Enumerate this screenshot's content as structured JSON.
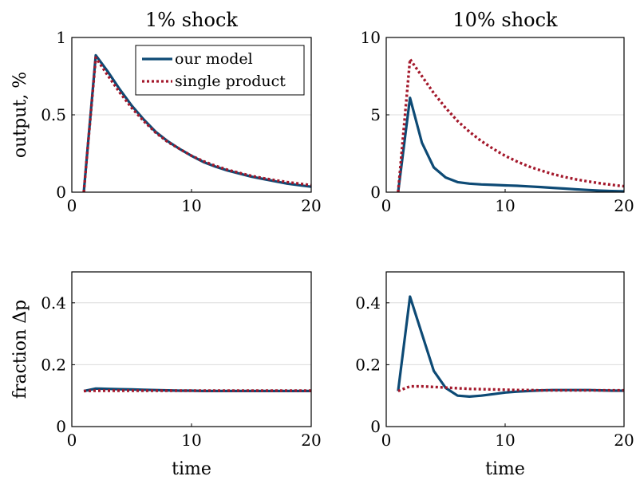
{
  "chart_data": [
    {
      "type": "line",
      "title": "1% shock",
      "xlabel": "",
      "ylabel": "output, %",
      "xlim": [
        0,
        20
      ],
      "ylim": [
        0,
        1
      ],
      "xticks": [
        "0",
        "10",
        "20"
      ],
      "yticks": [
        "0",
        "0.5",
        "1"
      ],
      "grid": "horizontal",
      "legend": "top-right",
      "series": [
        {
          "name": "our model",
          "color": "#0d4a75",
          "style": "solid",
          "x": [
            1,
            2,
            3,
            4,
            5,
            6,
            7,
            8,
            9,
            10,
            11,
            12,
            13,
            14,
            15,
            16,
            17,
            18,
            19,
            20
          ],
          "values": [
            0,
            0.885,
            0.78,
            0.665,
            0.56,
            0.47,
            0.39,
            0.33,
            0.28,
            0.235,
            0.195,
            0.165,
            0.14,
            0.12,
            0.1,
            0.085,
            0.07,
            0.055,
            0.045,
            0.035
          ]
        },
        {
          "name": "single product",
          "color": "#a3182b",
          "style": "dotted",
          "x": [
            1,
            2,
            3,
            4,
            5,
            6,
            7,
            8,
            9,
            10,
            11,
            12,
            13,
            14,
            15,
            16,
            17,
            18,
            19,
            20
          ],
          "values": [
            0,
            0.87,
            0.755,
            0.645,
            0.545,
            0.46,
            0.385,
            0.325,
            0.28,
            0.235,
            0.2,
            0.17,
            0.145,
            0.125,
            0.105,
            0.09,
            0.077,
            0.065,
            0.055,
            0.045
          ]
        }
      ]
    },
    {
      "type": "line",
      "title": "10% shock",
      "xlabel": "",
      "ylabel": "",
      "xlim": [
        0,
        20
      ],
      "ylim": [
        0,
        10
      ],
      "xticks": [
        "0",
        "10",
        "20"
      ],
      "yticks": [
        "0",
        "5",
        "10"
      ],
      "grid": "horizontal",
      "series": [
        {
          "color": "#0d4a75",
          "style": "solid",
          "x": [
            1,
            2,
            3,
            4,
            5,
            6,
            7,
            8,
            9,
            10,
            11,
            12,
            13,
            14,
            15,
            16,
            17,
            18,
            19,
            20
          ],
          "values": [
            0,
            6.1,
            3.2,
            1.6,
            0.95,
            0.65,
            0.55,
            0.5,
            0.47,
            0.44,
            0.41,
            0.37,
            0.33,
            0.28,
            0.23,
            0.18,
            0.14,
            0.1,
            0.07,
            0.05
          ]
        },
        {
          "color": "#a3182b",
          "style": "dotted",
          "x": [
            1,
            2,
            3,
            4,
            5,
            6,
            7,
            8,
            9,
            10,
            11,
            12,
            13,
            14,
            15,
            16,
            17,
            18,
            19,
            20
          ],
          "values": [
            0,
            8.6,
            7.5,
            6.4,
            5.45,
            4.6,
            3.9,
            3.3,
            2.8,
            2.35,
            1.98,
            1.66,
            1.4,
            1.17,
            0.98,
            0.82,
            0.69,
            0.57,
            0.47,
            0.38
          ]
        }
      ]
    },
    {
      "type": "line",
      "title": "",
      "xlabel": "time",
      "ylabel": "fraction Δp",
      "xlim": [
        0,
        20
      ],
      "ylim": [
        0,
        0.5
      ],
      "xticks": [
        "0",
        "10",
        "20"
      ],
      "yticks": [
        "0",
        "0.2",
        "0.4"
      ],
      "grid": "horizontal",
      "series": [
        {
          "color": "#0d4a75",
          "style": "solid",
          "x": [
            1,
            2,
            3,
            4,
            5,
            6,
            7,
            8,
            9,
            10,
            11,
            12,
            13,
            14,
            15,
            16,
            17,
            18,
            19,
            20
          ],
          "values": [
            0.115,
            0.123,
            0.122,
            0.121,
            0.12,
            0.119,
            0.118,
            0.117,
            0.116,
            0.116,
            0.115,
            0.115,
            0.115,
            0.115,
            0.115,
            0.115,
            0.115,
            0.115,
            0.115,
            0.115
          ]
        },
        {
          "color": "#a3182b",
          "style": "dotted",
          "x": [
            1,
            2,
            3,
            4,
            5,
            6,
            7,
            8,
            9,
            10,
            11,
            12,
            13,
            14,
            15,
            16,
            17,
            18,
            19,
            20
          ],
          "values": [
            0.115,
            0.116,
            0.116,
            0.116,
            0.116,
            0.116,
            0.116,
            0.116,
            0.116,
            0.116,
            0.116,
            0.116,
            0.116,
            0.116,
            0.116,
            0.116,
            0.116,
            0.116,
            0.116,
            0.116
          ]
        }
      ]
    },
    {
      "type": "line",
      "title": "",
      "xlabel": "time",
      "ylabel": "",
      "xlim": [
        0,
        20
      ],
      "ylim": [
        0,
        0.5
      ],
      "xticks": [
        "0",
        "10",
        "20"
      ],
      "yticks": [
        "0",
        "0.2",
        "0.4"
      ],
      "grid": "horizontal",
      "series": [
        {
          "color": "#0d4a75",
          "style": "solid",
          "x": [
            1,
            2,
            3,
            4,
            5,
            6,
            7,
            8,
            9,
            10,
            11,
            12,
            13,
            14,
            15,
            16,
            17,
            18,
            19,
            20
          ],
          "values": [
            0.115,
            0.42,
            0.3,
            0.18,
            0.125,
            0.1,
            0.097,
            0.1,
            0.105,
            0.11,
            0.113,
            0.115,
            0.117,
            0.118,
            0.118,
            0.118,
            0.118,
            0.117,
            0.116,
            0.116
          ]
        },
        {
          "color": "#a3182b",
          "style": "dotted",
          "x": [
            1,
            2,
            3,
            4,
            5,
            6,
            7,
            8,
            9,
            10,
            11,
            12,
            13,
            14,
            15,
            16,
            17,
            18,
            19,
            20
          ],
          "values": [
            0.115,
            0.13,
            0.13,
            0.128,
            0.126,
            0.124,
            0.122,
            0.121,
            0.12,
            0.119,
            0.118,
            0.118,
            0.117,
            0.117,
            0.117,
            0.117,
            0.117,
            0.117,
            0.117,
            0.117
          ]
        }
      ]
    }
  ]
}
